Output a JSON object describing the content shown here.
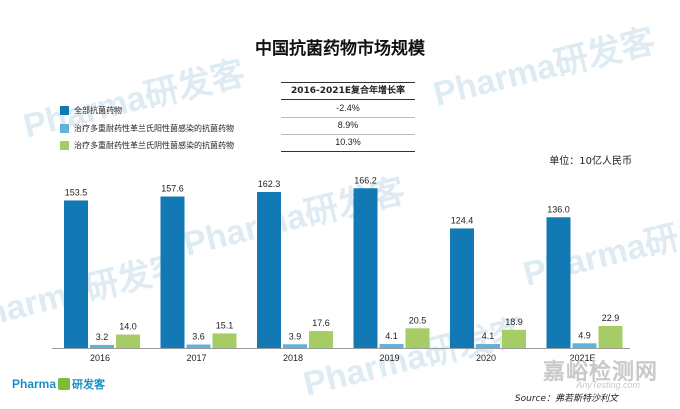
{
  "chart_data": {
    "type": "bar",
    "title": "中国抗菌药物市场规模",
    "unit": "单位：10亿人民币",
    "categories": [
      "2016",
      "2017",
      "2018",
      "2019",
      "2020",
      "2021E"
    ],
    "series": [
      {
        "name": "全部抗菌药物",
        "color": "#1279b4",
        "values": [
          153.5,
          157.6,
          162.3,
          166.2,
          124.4,
          136.0
        ],
        "labels": [
          "153.5",
          "157.6",
          "162.3",
          "166.2",
          "124.4",
          "136.0"
        ],
        "cagr": "-2.4%"
      },
      {
        "name": "治疗多重耐药性革兰氏阳性菌感染的抗菌药物",
        "color": "#5fb3d8",
        "values": [
          3.2,
          3.6,
          3.9,
          4.1,
          4.1,
          4.9
        ],
        "labels": [
          "3.2",
          "3.6",
          "3.9",
          "4.1",
          "4.1",
          "4.9"
        ],
        "cagr": "8.9%"
      },
      {
        "name": "治疗多重耐药性革兰氏阴性菌感染的抗菌药物",
        "color": "#a6cc66",
        "values": [
          14.0,
          15.1,
          17.6,
          20.5,
          18.9,
          22.9
        ],
        "labels": [
          "14.0",
          "15.1",
          "17.6",
          "20.5",
          "18.9",
          "22.9"
        ],
        "cagr": "10.3%"
      }
    ],
    "cagr_header": "2016-2021E复合年增长率",
    "ylim": [
      0,
      180
    ],
    "grid": false,
    "legend_placement": "top-left"
  },
  "source": "Source：弗若斯特沙利文",
  "branding": {
    "logo_text": "Pharma",
    "logo_cn": "研发客",
    "watermark": "Pharma研发客",
    "site_watermark": "嘉峪检测网",
    "site_sub": "AnyTesting.com"
  }
}
